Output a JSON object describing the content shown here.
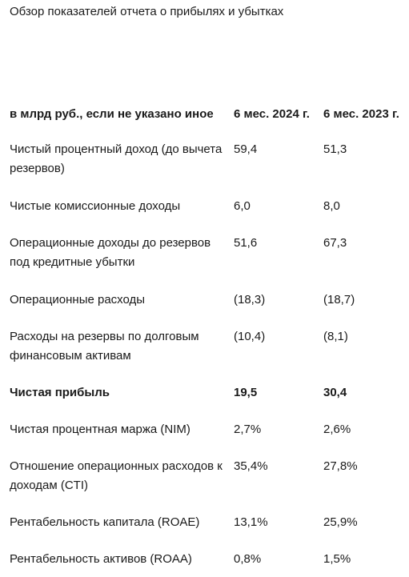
{
  "title": "Обзор показателей отчета о прибылях и убытках",
  "table": {
    "header": [
      "в млрд руб., если не указано иное",
      "6 мес. 2024 г.",
      "6 мес. 2023 г."
    ],
    "rows": [
      [
        "Чистый процентный доход (до вычета резервов)",
        "59,4",
        "51,3"
      ],
      [
        "Чистые комиссионные доходы",
        "6,0",
        "8,0"
      ],
      [
        "Операционные доходы до резервов под кредитные убытки",
        "51,6",
        "67,3"
      ],
      [
        "Операционные расходы",
        "(18,3)",
        "(18,7)"
      ],
      [
        "Расходы на резервы по долговым финансовым активам",
        "(10,4)",
        "(8,1)"
      ],
      [
        "Чистая прибыль",
        "19,5",
        "30,4"
      ],
      [
        "Чистая процентная маржа (NIM)",
        "2,7%",
        "2,6%"
      ],
      [
        "Отношение операционных расходов к доходам (CTI)",
        "35,4%",
        "27,8%"
      ],
      [
        "Рентабельность капитала (ROAE)",
        "13,1%",
        "25,9%"
      ],
      [
        "Рентабельность активов (ROAA)",
        "0,8%",
        "1,5%"
      ]
    ]
  }
}
